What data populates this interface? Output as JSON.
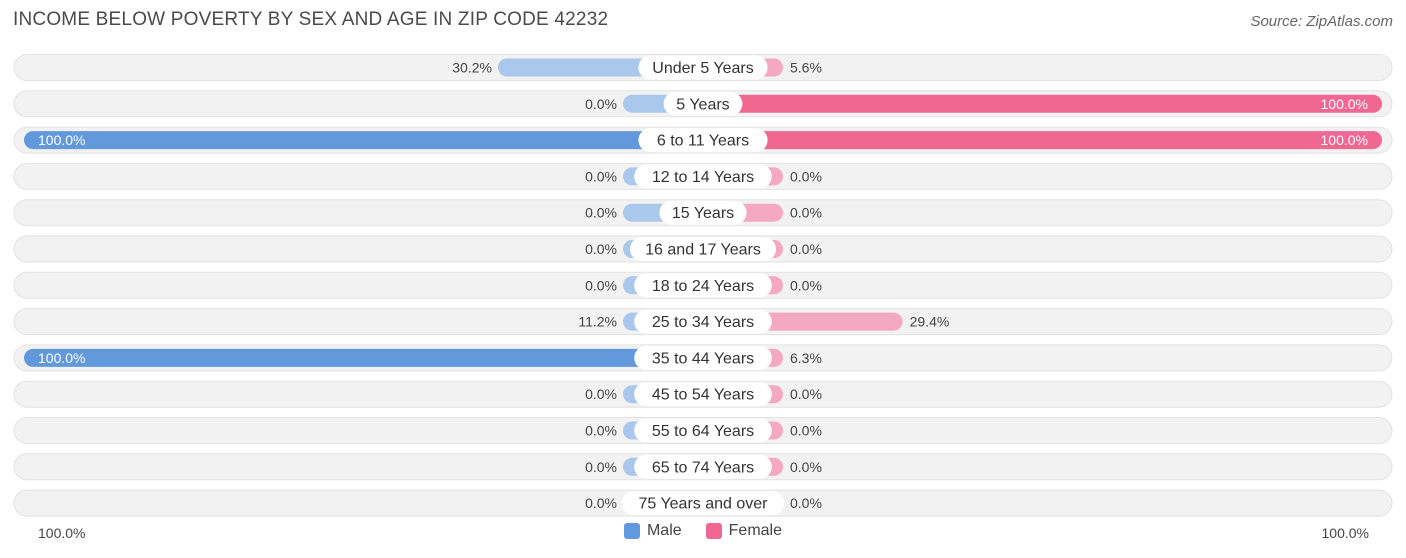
{
  "title": "INCOME BELOW POVERTY BY SEX AND AGE IN ZIP CODE 42232",
  "source": "Source: ZipAtlas.com",
  "colors": {
    "male": "#6199dc",
    "male_light": "#a9c8ec",
    "female": "#f06792",
    "female_light": "#f5a8c1",
    "track": "#efefef"
  },
  "chart_data": {
    "type": "bar",
    "categories": [
      "Under 5 Years",
      "5 Years",
      "6 to 11 Years",
      "12 to 14 Years",
      "15 Years",
      "16 and 17 Years",
      "18 to 24 Years",
      "25 to 34 Years",
      "35 to 44 Years",
      "45 to 54 Years",
      "55 to 64 Years",
      "65 to 74 Years",
      "75 Years and over"
    ],
    "series": [
      {
        "name": "Male",
        "values": [
          30.2,
          0.0,
          100.0,
          0.0,
          0.0,
          0.0,
          0.0,
          11.2,
          100.0,
          0.0,
          0.0,
          0.0,
          0.0
        ],
        "labels": [
          "30.2%",
          "0.0%",
          "100.0%",
          "0.0%",
          "0.0%",
          "0.0%",
          "0.0%",
          "11.2%",
          "100.0%",
          "0.0%",
          "0.0%",
          "0.0%",
          "0.0%"
        ]
      },
      {
        "name": "Female",
        "values": [
          5.6,
          100.0,
          100.0,
          0.0,
          0.0,
          0.0,
          0.0,
          29.4,
          6.3,
          0.0,
          0.0,
          0.0,
          0.0
        ],
        "labels": [
          "5.6%",
          "100.0%",
          "100.0%",
          "0.0%",
          "0.0%",
          "0.0%",
          "0.0%",
          "29.4%",
          "6.3%",
          "0.0%",
          "0.0%",
          "0.0%",
          "0.0%"
        ]
      }
    ],
    "xlim": [
      0,
      100
    ],
    "axis_left_label": "100.0%",
    "axis_right_label": "100.0%",
    "legend": [
      "Male",
      "Female"
    ],
    "legend_position": "bottom-center"
  }
}
